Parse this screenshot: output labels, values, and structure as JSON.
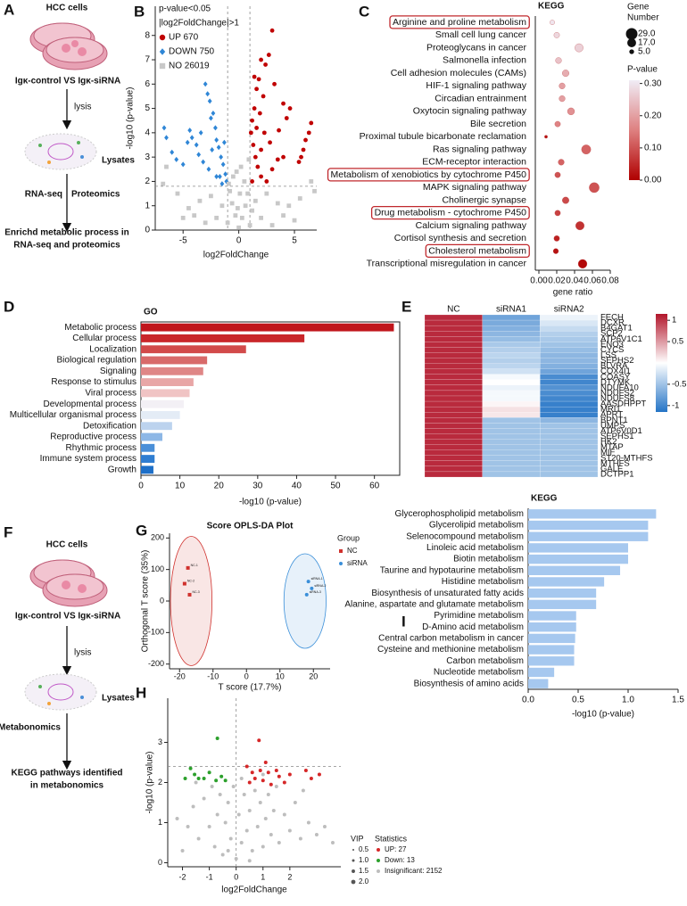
{
  "panel_labels": [
    "A",
    "B",
    "C",
    "D",
    "E",
    "F",
    "G",
    "H",
    "I"
  ],
  "diagram_a": {
    "top": "HCC cells",
    "compare": "Igκ-control VS Igκ-siRNA",
    "step1": "lysis",
    "lysates": "Lysates",
    "step2_left": "RNA-seq",
    "step2_right": "Proteomics",
    "result": [
      "Enrichd metabolic process in",
      "RNA-seq and proteomics"
    ]
  },
  "diagram_f": {
    "top": "HCC cells",
    "compare": "Igκ-control VS Igκ-siRNA",
    "step1": "lysis",
    "lysates": "Lysates",
    "step2": "Metabonomics",
    "result": [
      "KEGG pathways identified",
      "in metabonomics"
    ]
  },
  "chart_data": [
    {
      "type": "scatter",
      "annotations": [
        "p-value<0.05",
        "|log2FoldChange|>1"
      ],
      "xlabel": "log2FoldChange",
      "ylabel": "-log10 (p-value)",
      "xlim": [
        -7.5,
        7
      ],
      "xticks": [
        -5,
        0,
        5
      ],
      "ylim": [
        0,
        9.2
      ],
      "yticks": [
        0,
        1,
        2,
        3,
        4,
        5,
        6,
        7,
        8
      ],
      "thresholds": {
        "x": [
          -1,
          1
        ],
        "y": [
          1.8
        ]
      },
      "series": [
        {
          "name": "UP 670",
          "color": "#c00000",
          "marker": "circle",
          "x": [
            6.5,
            6.3,
            6.0,
            5.8,
            5.6,
            5.4,
            4.6,
            4.3,
            4.0,
            3.6,
            3.2,
            3.0,
            2.7,
            2.4,
            2.2,
            2.0,
            1.8,
            1.6,
            1.4,
            1.2,
            1.1,
            1.3,
            1.5,
            1.7,
            2.0,
            2.5,
            3.0,
            3.5,
            1.2,
            1.6,
            2.3,
            2.8,
            4.0,
            2.0,
            1.4,
            1.9
          ],
          "values": [
            4.4,
            4.0,
            3.7,
            3.3,
            3.0,
            2.8,
            5.0,
            4.6,
            5.2,
            4.1,
            6.0,
            8.2,
            7.2,
            6.8,
            5.5,
            7.0,
            6.2,
            5.8,
            5.0,
            4.5,
            4.0,
            3.5,
            3.0,
            2.6,
            2.2,
            2.0,
            2.5,
            2.9,
            2.0,
            4.2,
            4.0,
            3.6,
            3.0,
            3.3,
            6.3,
            4.8
          ]
        },
        {
          "name": "DOWN 750",
          "color": "#2f86d6",
          "marker": "diamond",
          "x": [
            -6.7,
            -6.5,
            -6.0,
            -5.6,
            -5.0,
            -4.6,
            -4.4,
            -4.2,
            -3.8,
            -3.4,
            -3.0,
            -2.8,
            -2.6,
            -2.5,
            -2.3,
            -2.1,
            -2.0,
            -1.8,
            -1.6,
            -1.4,
            -1.2,
            -1.1,
            -1.5,
            -2.0,
            -2.7,
            -3.2,
            -1.3,
            -1.7,
            -2.4,
            -3.6
          ],
          "values": [
            4.2,
            3.8,
            3.2,
            2.9,
            2.7,
            3.6,
            4.1,
            3.8,
            3.5,
            4.0,
            6.0,
            5.6,
            5.3,
            4.6,
            4.8,
            4.2,
            3.7,
            3.4,
            3.0,
            2.7,
            2.3,
            2.0,
            1.9,
            2.2,
            2.5,
            2.8,
            3.6,
            2.2,
            3.3,
            3.1
          ]
        },
        {
          "name": "NO 26019",
          "color": "#c8c8c8",
          "marker": "square",
          "x": [
            0,
            0.3,
            -0.3,
            0.6,
            -0.6,
            0.8,
            -0.8,
            0.5,
            -0.5,
            0.2,
            -0.2,
            0.9,
            -0.9,
            1.5,
            -1.5,
            2.5,
            -2.5,
            3.5,
            -3.5,
            4.5,
            -4.5,
            5.5,
            -5.5,
            6.5,
            -6.5,
            6.8,
            -6.8,
            2,
            -2,
            3,
            -3,
            1,
            -1,
            4,
            -4,
            5,
            -5,
            0.1,
            -0.1,
            1.2
          ],
          "values": [
            0.1,
            0.5,
            0.6,
            1.0,
            1.1,
            1.5,
            1.6,
            2.0,
            2.2,
            2.6,
            2.4,
            2.9,
            1.9,
            1.2,
            1.0,
            1.5,
            1.4,
            1.1,
            1.2,
            1.0,
            0.9,
            1.3,
            1.5,
            2.0,
            2.6,
            1.6,
            1.9,
            0.5,
            0.5,
            0.2,
            0.3,
            0.2,
            0.3,
            0.6,
            0.6,
            0.4,
            0.5,
            1.5,
            0.9,
            0.8
          ]
        }
      ]
    },
    {
      "type": "bubble",
      "title": "KEGG",
      "xlabel": "gene ratio",
      "categories": [
        "Arginine and proline metabolism",
        "Small cell lung cancer",
        "Proteoglycans in cancer",
        "Salmonella infection",
        "Cell adhesion molecules (CAMs)",
        "HIF-1 signaling pathway",
        "Circadian entrainment",
        "Oxytocin signaling pathway",
        "Bile secretion",
        "Proximal tubule bicarbonate reclamation",
        "Ras signaling pathway",
        "ECM-receptor interaction",
        "Metabolism of xenobiotics by cytochrome P450",
        "MAPK signaling pathway",
        "Cholinergic synapse",
        "Drug metabolism - cytochrome P450",
        "Calcium signaling pathway",
        "Cortisol synthesis and secretion",
        "Cholesterol metabolism",
        "Transcriptional misregulation in cancer"
      ],
      "values": [
        0.015,
        0.02,
        0.045,
        0.022,
        0.03,
        0.026,
        0.026,
        0.036,
        0.021,
        0.008,
        0.053,
        0.025,
        0.021,
        0.062,
        0.03,
        0.021,
        0.046,
        0.02,
        0.019,
        0.049
      ],
      "sizes": [
        5,
        7,
        15,
        8,
        10,
        8,
        8,
        11,
        7,
        2,
        19,
        8,
        7,
        22,
        10,
        7,
        16,
        7,
        6,
        17
      ],
      "pvalues": [
        0.3,
        0.28,
        0.27,
        0.25,
        0.22,
        0.2,
        0.2,
        0.18,
        0.16,
        0.02,
        0.12,
        0.12,
        0.1,
        0.1,
        0.09,
        0.08,
        0.06,
        0.04,
        0.02,
        0.01
      ],
      "highlight": [
        0,
        12,
        15,
        18
      ],
      "highlight_color": "#c0282d",
      "xlim": [
        -0.004,
        0.08
      ],
      "xticks": [
        {
          "value": 0,
          "label": "0.00"
        },
        {
          "value": 0.02,
          "label": "0.02"
        },
        {
          "value": 0.04,
          "label": "0.04"
        },
        {
          "value": 0.06,
          "label": "0.06"
        },
        {
          "value": 0.08,
          "label": "0.08"
        }
      ],
      "size_legend": {
        "title": [
          "Gene",
          "Number"
        ],
        "values": [
          {
            "value": 29,
            "label": "29.0"
          },
          {
            "value": 17,
            "label": "17.0"
          },
          {
            "value": 5,
            "label": "5.0"
          }
        ]
      },
      "colorbar": {
        "title": "P-value",
        "lim": [
          0,
          0.31
        ],
        "colormap": [
          "#b00000",
          "#de8080",
          "#f0ecf5"
        ],
        "ticks": [
          {
            "value": 0.3,
            "label": "0.30"
          },
          {
            "value": 0.2,
            "label": "0.20"
          },
          {
            "value": 0.1,
            "label": "0.10"
          },
          {
            "value": 0,
            "label": "0.00"
          }
        ]
      }
    },
    {
      "type": "barh",
      "title": "GO",
      "xlabel": "-log10 (p-value)",
      "frame": true,
      "categories": [
        "Metabolic process",
        "Cellular process",
        "Localization",
        "Biological regulation",
        "Signaling",
        "Response to stimulus",
        "Viral process",
        "Developmental process",
        "Multicellular organismal process",
        "Detoxification",
        "Reproductive process",
        "Rhythmic process",
        "Immune system process",
        "Growth"
      ],
      "values": [
        65,
        42,
        27,
        17,
        16,
        13.5,
        12.5,
        11,
        10,
        8,
        5.5,
        3.5,
        3.5,
        3.2
      ],
      "colors": [
        "#c0151b",
        "#c9262a",
        "#d24a4a",
        "#d86a6a",
        "#df8686",
        "#e8a6a6",
        "#f0c4c4",
        "#f3f0f5",
        "#e4ecf6",
        "#bcd3ee",
        "#8db7e6",
        "#4a8fd8",
        "#2f7dd1",
        "#1d6fc8"
      ],
      "xlim": [
        0,
        66.5
      ],
      "xticks": [
        0,
        10,
        20,
        30,
        40,
        50,
        60
      ]
    },
    {
      "type": "heatmap",
      "categories": [
        "FECH",
        "DCXR",
        "B4GAT1",
        "SCP2",
        "ATP6V1C1",
        "ENO3",
        "CYCS",
        "LSS",
        "SEPHS2",
        "BLVRA",
        "COX4I1",
        "COASY",
        "DTYMK",
        "NDUFA10",
        "NDUFS2",
        "NDUFS8",
        "AASDHPPT",
        "MRI1",
        "APRT",
        "BPNT1",
        "UMPS",
        "ATP6V0D1",
        "SEPHS1",
        "HK2",
        "MTAP",
        "MIF",
        "ST20-MTHFS",
        "MTHFS",
        "GALE",
        "DCTPP1"
      ],
      "series": [
        {
          "name": "NC",
          "values": [
            1.05,
            1.05,
            1.05,
            1.05,
            1.05,
            1.05,
            1.05,
            1.05,
            1.05,
            1.05,
            1.05,
            1.05,
            1.05,
            1.05,
            1.05,
            1.05,
            1.05,
            1.05,
            1.05,
            1.05,
            1.05,
            1.05,
            1.05,
            1.05,
            1.05,
            1.05,
            1.05,
            1.05,
            1.05,
            1.05
          ]
        },
        {
          "name": "siRNA1",
          "values": [
            -0.75,
            -0.7,
            -0.65,
            -0.6,
            -0.55,
            -0.45,
            -0.4,
            -0.35,
            -0.4,
            -0.35,
            -0.25,
            -0.05,
            0,
            -0.1,
            -0.05,
            -0.05,
            0.05,
            0.15,
            0.12,
            -0.5,
            -0.5,
            -0.5,
            -0.5,
            -0.5,
            -0.5,
            -0.5,
            -0.5,
            -0.5,
            -0.5,
            -0.5
          ]
        },
        {
          "name": "siRNA2",
          "values": [
            -0.1,
            -0.2,
            -0.3,
            -0.4,
            -0.45,
            -0.5,
            -0.55,
            -0.6,
            -0.6,
            -0.65,
            -0.75,
            -0.95,
            -1,
            -0.9,
            -0.95,
            -1,
            -1.05,
            -1.05,
            -1.05,
            -0.6,
            -0.5,
            -0.5,
            -0.5,
            -0.5,
            -0.5,
            -0.5,
            -0.5,
            -0.5,
            -0.5,
            -0.5
          ]
        }
      ],
      "colorbar": {
        "lim": [
          -1.15,
          1.15
        ],
        "colormap": [
          "#2474c6",
          "#ffffff",
          "#b2162b"
        ],
        "ticks": [
          1,
          0.5,
          -0.5,
          -1
        ]
      }
    },
    {
      "type": "scatter",
      "title": "Score OPLS-DA Plot",
      "xlabel": "T score (17.7%)",
      "ylabel": "Orthogonal T score (35%)",
      "legend_title": "Group",
      "xlim": [
        -23,
        25
      ],
      "xticks": [
        -20,
        -10,
        0,
        10,
        20
      ],
      "ylim": [
        -215,
        215
      ],
      "yticks": [
        -200,
        -100,
        0,
        100,
        200
      ],
      "series": [
        {
          "name": "NC",
          "color": "#d0312d",
          "marker": "square",
          "x": [
            -17.5,
            -18.5,
            -17
          ],
          "values": [
            105,
            55,
            20
          ],
          "point_labels": [
            "NC-1",
            "NC-2",
            "NC-3"
          ],
          "ellipse": {
            "cx": -16.5,
            "cy": 0,
            "rx": 6.2,
            "ry": 205
          }
        },
        {
          "name": "siRNA",
          "color": "#3a8fd9",
          "marker": "circle",
          "x": [
            18.5,
            19.5,
            18
          ],
          "values": [
            62,
            40,
            20
          ],
          "point_labels": [
            "siRNA-1",
            "siRNA-2",
            "siRNA-3"
          ],
          "ellipse": {
            "cx": 17.5,
            "cy": 0,
            "rx": 6.3,
            "ry": 150
          }
        }
      ]
    },
    {
      "type": "scatter",
      "xlabel": "log2FoldChange",
      "ylabel": "-log10 (p-value)",
      "legend_title": "Statistics",
      "xlim": [
        -2.55,
        3.9
      ],
      "xticks": [
        -2,
        -1,
        0,
        1,
        2
      ],
      "ylim": [
        -0.1,
        4.1
      ],
      "yticks": [
        0,
        1,
        2,
        3
      ],
      "thresholds": {
        "x": [
          0
        ],
        "y": [
          2.4
        ]
      },
      "size_legend": {
        "title": "VIP",
        "values": [
          0.5,
          {
            "value": 1,
            "label": "1.0"
          },
          1.5,
          {
            "value": 2,
            "label": "2.0"
          }
        ]
      },
      "series": [
        {
          "name": "UP: 27",
          "color": "#d62728",
          "marker": "circle",
          "x": [
            0.85,
            0.6,
            0.9,
            1.2,
            1.5,
            1.8,
            2.6,
            2.8,
            3.1,
            0.5,
            1.0,
            1.3,
            2.0,
            0.7,
            1.6,
            0.4,
            1.1
          ],
          "values": [
            3.05,
            2.25,
            2.3,
            2.25,
            2.3,
            2.0,
            2.3,
            2.1,
            2.2,
            2.0,
            2.05,
            1.95,
            2.2,
            2.1,
            2.15,
            2.4,
            2.5
          ]
        },
        {
          "name": "Down: 13",
          "color": "#2ca02c",
          "marker": "circle",
          "x": [
            -1.7,
            -1.4,
            -1.2,
            -1.9,
            -1.0,
            -0.75,
            -0.4,
            -0.7,
            -1.55,
            -0.55
          ],
          "values": [
            2.35,
            2.1,
            2.1,
            2.1,
            2.25,
            2.05,
            2.05,
            3.1,
            2.2,
            2.15
          ]
        },
        {
          "name": "Insignificant: 2152",
          "color": "#bdbdbd",
          "marker": "circle",
          "x": [
            -2.0,
            -1.8,
            -1.6,
            -1.4,
            -1.2,
            -1.0,
            -0.9,
            -0.8,
            -0.7,
            -0.6,
            -0.5,
            -0.4,
            -0.3,
            -0.2,
            -0.1,
            0,
            0.1,
            0.2,
            0.3,
            0.4,
            0.5,
            0.6,
            0.7,
            0.8,
            0.9,
            1.0,
            1.1,
            1.2,
            1.3,
            1.4,
            1.5,
            1.6,
            1.8,
            2.0,
            2.2,
            2.4,
            2.7,
            3.0,
            3.3,
            3.6,
            -2.2,
            -1.5,
            0.2,
            -0.3,
            0.5,
            1.0,
            2.5
          ],
          "values": [
            0.3,
            0.9,
            1.4,
            0.6,
            1.6,
            0.9,
            1.9,
            0.4,
            1.2,
            1.7,
            0.2,
            1.0,
            1.5,
            0.6,
            1.9,
            0.1,
            1.2,
            0.5,
            1.7,
            0.8,
            1.3,
            0.3,
            1.8,
            0.9,
            1.5,
            0.4,
            1.1,
            1.7,
            0.7,
            1.3,
            1.9,
            0.5,
            1.2,
            0.8,
            1.5,
            0.6,
            1.0,
            0.7,
            0.9,
            0.5,
            1.1,
            2.0,
            2.1,
            0.3,
            0.05,
            2.2,
            1.8
          ]
        }
      ]
    },
    {
      "type": "barh",
      "title": "KEGG",
      "xlabel": "-log10 (p-value)",
      "color": "#a6c8ef",
      "categories": [
        "Glycerophospholipid metabolism",
        "Glycerolipid metabolism",
        "Selenocompound metabolism",
        "Linoleic acid metabolism",
        "Biotin metabolism",
        "Taurine and hypotaurine metabolism",
        "Histidine metabolism",
        "Biosynthesis of unsaturated fatty acids",
        "Alanine, aspartate and glutamate metabolism",
        "Pyrimidine metabolism",
        "D-Amino acid metabolism",
        "Central carbon metabolism in cancer",
        "Cysteine and methionine metabolism",
        "Carbon metabolism",
        "Nucleotide metabolism",
        "Biosynthesis of amino acids"
      ],
      "values": [
        1.28,
        1.2,
        1.2,
        1.0,
        1.0,
        0.92,
        0.76,
        0.68,
        0.68,
        0.48,
        0.48,
        0.47,
        0.46,
        0.46,
        0.26,
        0.2
      ],
      "xlim": [
        0,
        1.5
      ],
      "xticks": [
        {
          "value": 0,
          "label": "0.0"
        },
        0.5,
        {
          "value": 1,
          "label": "1.0"
        },
        1.5
      ]
    }
  ]
}
